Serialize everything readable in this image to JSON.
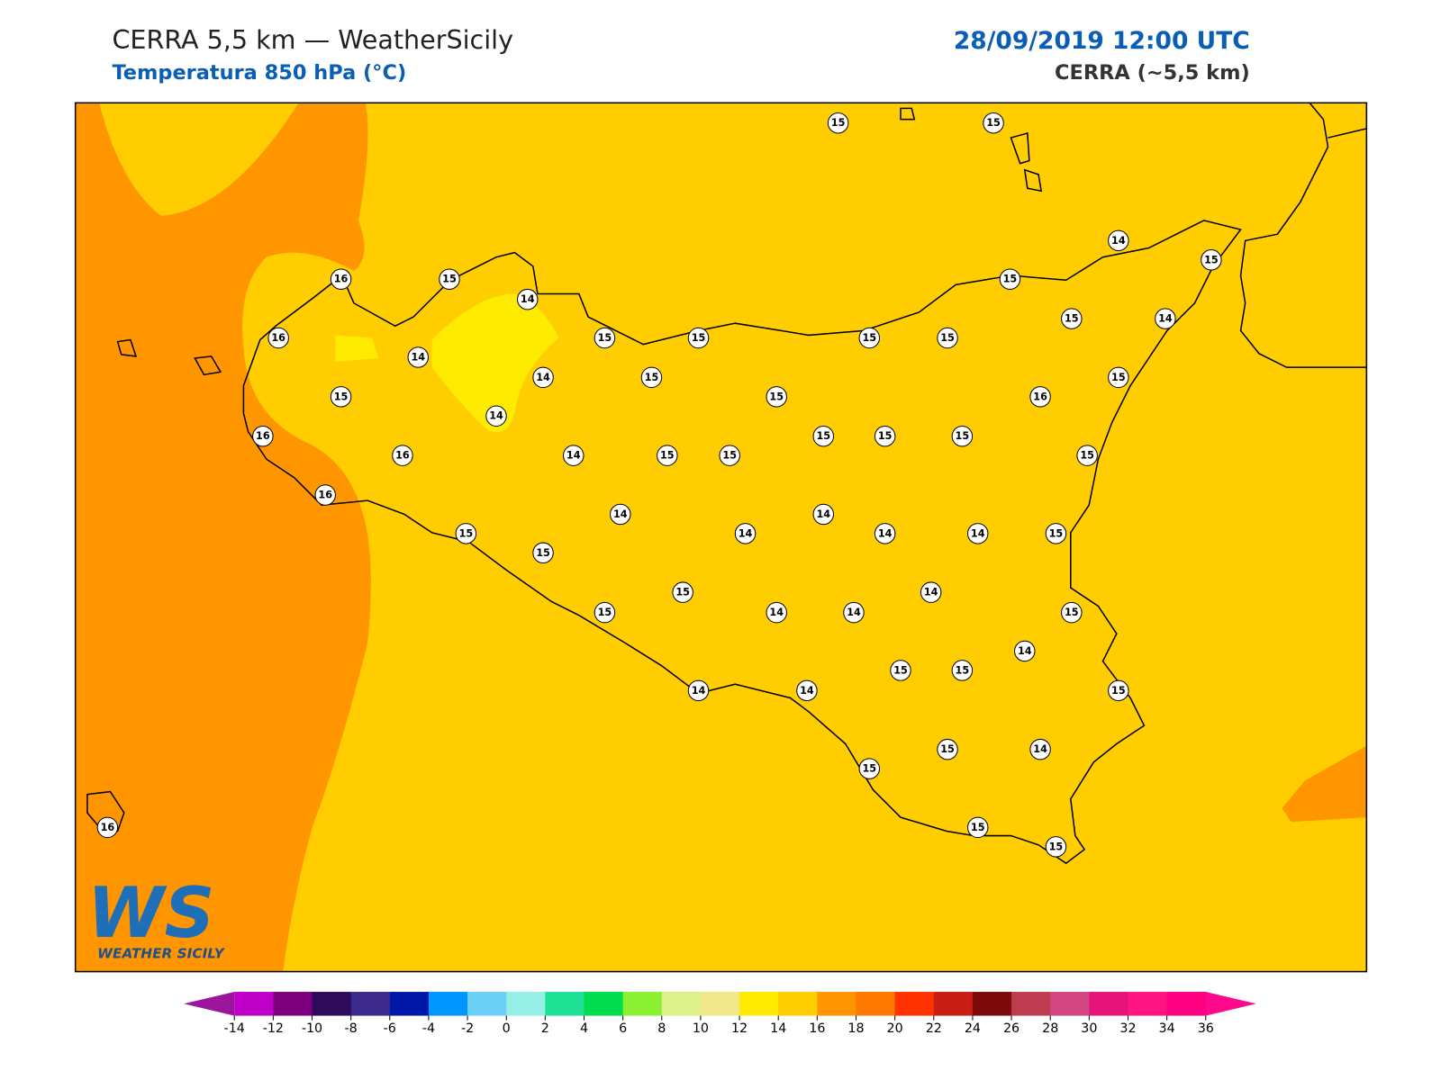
{
  "header": {
    "title": "CERRA 5,5 km — WeatherSicily",
    "subtitle": "Temperatura 850 hPa (°C)",
    "date": "28/09/2019 12:00 UTC",
    "model": "CERRA (~5,5 km)"
  },
  "logo": {
    "mark": "WS",
    "name": "WEATHER SICILY"
  },
  "stations": [
    15,
    15,
    16,
    15,
    14,
    14,
    15,
    15,
    16,
    15,
    15,
    15,
    15,
    15,
    14,
    14,
    14,
    15,
    15,
    15,
    15,
    16,
    14,
    16,
    15,
    15,
    15,
    16,
    14,
    15,
    15,
    15,
    16,
    14,
    14,
    15,
    14,
    14,
    14,
    15,
    15,
    14,
    15,
    15,
    14,
    14,
    15,
    14,
    15,
    15,
    14,
    14,
    15,
    15,
    14,
    15,
    15,
    15,
    16
  ],
  "colorbar": {
    "ticks": [
      -14,
      -12,
      -10,
      -8,
      -6,
      -4,
      -2,
      0,
      2,
      4,
      6,
      8,
      10,
      12,
      14,
      16,
      18,
      20,
      22,
      24,
      26,
      28,
      30,
      32,
      34,
      36
    ],
    "under": "#9b169b",
    "over": "#ff0a8c",
    "colors": [
      "#c000c8",
      "#7f007f",
      "#2d0a5a",
      "#3c2a8c",
      "#0018a8",
      "#0096ff",
      "#6ccff6",
      "#96f0e6",
      "#1ee196",
      "#00dc50",
      "#8cf032",
      "#dcf08c",
      "#f0e68c",
      "#ffeb00",
      "#ffcd00",
      "#ff9600",
      "#ff7800",
      "#ff3200",
      "#c81e14",
      "#7d0a0a",
      "#be3c50",
      "#d24682",
      "#e61478",
      "#ff1482",
      "#ff0080"
    ]
  }
}
